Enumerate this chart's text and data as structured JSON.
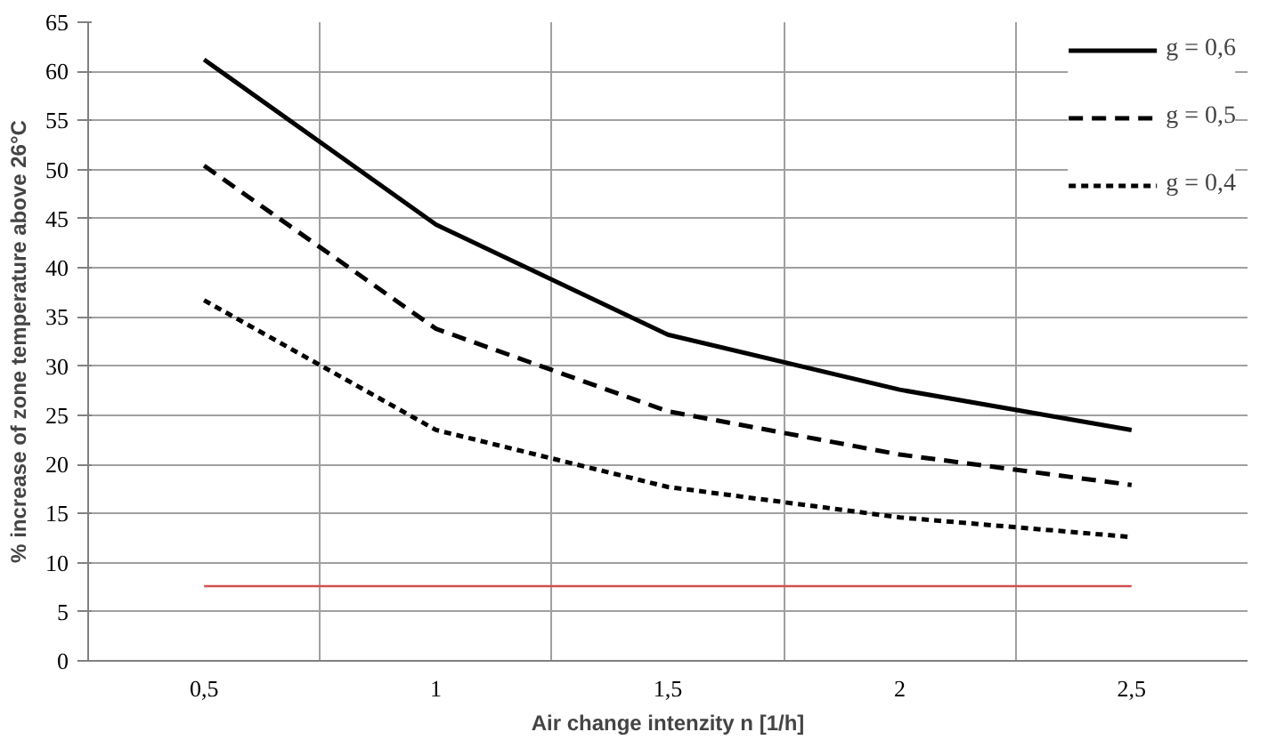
{
  "chart_data": {
    "type": "line",
    "xlabel": "Air change intenzity n [1/h]",
    "ylabel": "% increase of zone temperature above 26°C",
    "categories": [
      "0,5",
      "1",
      "1,5",
      "2",
      "2,5"
    ],
    "series": [
      {
        "name": "g = 0,6",
        "color": "#000000",
        "line_style": "solid",
        "values": [
          61.2,
          44.4,
          33.2,
          27.6,
          23.5
        ]
      },
      {
        "name": "g = 0,5",
        "color": "#000000",
        "line_style": "dashed",
        "values": [
          50.4,
          33.8,
          25.4,
          21.0,
          17.9
        ]
      },
      {
        "name": "g = 0,4",
        "color": "#000000",
        "line_style": "dotted",
        "values": [
          36.7,
          23.5,
          17.7,
          14.6,
          12.6
        ]
      }
    ],
    "ref_lines": [
      {
        "axis": "y",
        "value": 7.6,
        "color": "#d05050"
      }
    ],
    "ylim": [
      0,
      65
    ],
    "yticks": [
      0,
      5,
      10,
      15,
      20,
      25,
      30,
      35,
      40,
      45,
      50,
      55,
      60,
      65
    ],
    "grid": true,
    "legend": "top right",
    "marker": "none"
  }
}
